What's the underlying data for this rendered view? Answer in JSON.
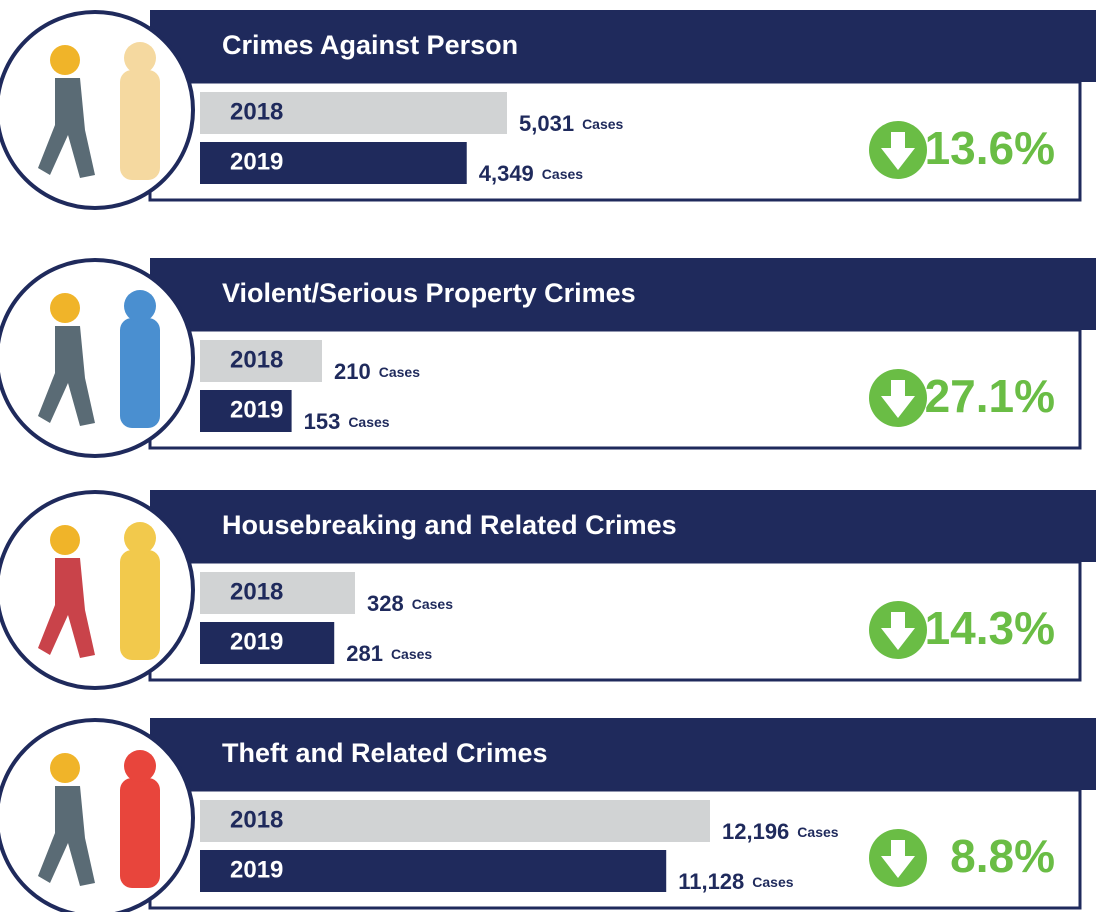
{
  "panels": [
    {
      "title": "Crimes Against Person",
      "rows": [
        {
          "year": "2018",
          "value": 5031,
          "value_label": "5,031",
          "unit": "Cases"
        },
        {
          "year": "2019",
          "value": 4349,
          "value_label": "4,349",
          "unit": "Cases"
        }
      ],
      "change": "13.6%"
    },
    {
      "title": "Violent/Serious Property Crimes",
      "rows": [
        {
          "year": "2018",
          "value": 210,
          "value_label": "210",
          "unit": "Cases"
        },
        {
          "year": "2019",
          "value": 153,
          "value_label": "153",
          "unit": "Cases"
        }
      ],
      "change": "27.1%"
    },
    {
      "title": "Housebreaking and Related Crimes",
      "rows": [
        {
          "year": "2018",
          "value": 328,
          "value_label": "328",
          "unit": "Cases"
        },
        {
          "year": "2019",
          "value": 281,
          "value_label": "281",
          "unit": "Cases"
        }
      ],
      "change": "14.3%"
    },
    {
      "title": "Theft and Related Crimes",
      "rows": [
        {
          "year": "2018",
          "value": 12196,
          "value_label": "12,196",
          "unit": "Cases"
        },
        {
          "year": "2019",
          "value": 11128,
          "value_label": "11,128",
          "unit": "Cases"
        }
      ],
      "change": "8.8%"
    }
  ]
}
